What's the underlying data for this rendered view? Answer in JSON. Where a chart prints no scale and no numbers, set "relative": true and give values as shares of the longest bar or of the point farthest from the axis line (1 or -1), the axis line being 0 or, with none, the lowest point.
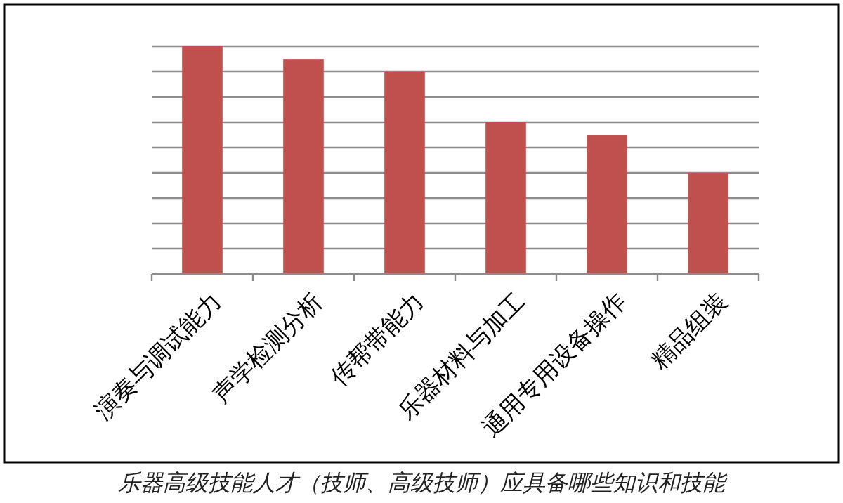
{
  "chart_data": {
    "type": "bar",
    "relative": true,
    "grid": "y",
    "categories": [
      "演奏与调试能力",
      "声学检测分析",
      "传帮带能力",
      "乐器材料与加工",
      "通用专用设备操作",
      "精品组装"
    ],
    "values": [
      1,
      0.944,
      0.889,
      0.667,
      0.611,
      0.444
    ],
    "color": "#c0504d",
    "annotations": [
      "乐器高级技能人才（技师、高级技师）应具备哪些知识和技能"
    ]
  }
}
